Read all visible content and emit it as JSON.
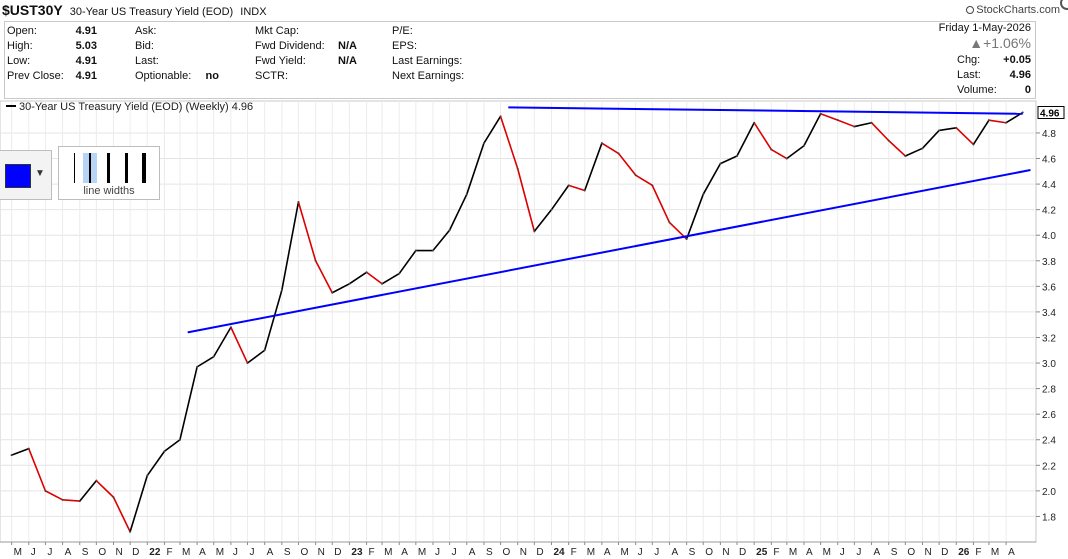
{
  "header": {
    "symbol": "$UST30Y",
    "name": "30-Year US Treasury Yield (EOD)",
    "exchange": "INDX",
    "brand": "StockCharts.com",
    "date": "Friday  1-May-2026",
    "change_pct": "▲+1.06%"
  },
  "quote": {
    "col1": [
      {
        "label": "Open:",
        "value": "4.91"
      },
      {
        "label": "High:",
        "value": "5.03"
      },
      {
        "label": "Low:",
        "value": "4.91"
      },
      {
        "label": "Prev Close:",
        "value": "4.91"
      }
    ],
    "col2": [
      {
        "label": "Ask:",
        "value": ""
      },
      {
        "label": "Bid:",
        "value": ""
      },
      {
        "label": "Last:",
        "value": ""
      },
      {
        "label": "Optionable:",
        "value": "no"
      }
    ],
    "col3": [
      {
        "label": "Mkt Cap:",
        "value": ""
      },
      {
        "label": "Fwd Dividend:",
        "value": "N/A"
      },
      {
        "label": "Fwd Yield:",
        "value": "N/A"
      },
      {
        "label": "SCTR:",
        "value": ""
      }
    ],
    "col4": [
      {
        "label": "P/E:",
        "value": ""
      },
      {
        "label": "EPS:",
        "value": ""
      },
      {
        "label": "Last Earnings:",
        "value": ""
      },
      {
        "label": "Next Earnings:",
        "value": ""
      }
    ],
    "right": [
      {
        "label": "Chg:",
        "value": "+0.05"
      },
      {
        "label": "Last:",
        "value": "4.96"
      },
      {
        "label": "Volume:",
        "value": "0"
      }
    ]
  },
  "legend": {
    "text": "30-Year US Treasury Yield (EOD) (Weekly) 4.96"
  },
  "toolbar": {
    "line_widths_label": "line widths",
    "color": "#0000ff"
  },
  "chart_data": {
    "type": "line",
    "frequency": "weekly",
    "series": [
      {
        "name": "30-Year US Treasury Yield (EOD) (Weekly) 4.96",
        "up_color": "#000000",
        "down_color": "#dd0000",
        "x": [
          "2021-05-01",
          "2021-06-01",
          "2021-07-01",
          "2021-08-01",
          "2021-09-01",
          "2021-10-01",
          "2021-11-01",
          "2021-12-01",
          "2022-01-01",
          "2022-02-01",
          "2022-03-01",
          "2022-04-01",
          "2022-05-01",
          "2022-06-01",
          "2022-07-01",
          "2022-08-01",
          "2022-09-01",
          "2022-10-01",
          "2022-11-01",
          "2022-12-01",
          "2023-01-01",
          "2023-02-01",
          "2023-03-01",
          "2023-04-01",
          "2023-05-01",
          "2023-06-01",
          "2023-07-01",
          "2023-08-01",
          "2023-09-01",
          "2023-10-01",
          "2023-11-01",
          "2023-12-01",
          "2024-01-01",
          "2024-02-01",
          "2024-03-01",
          "2024-04-01",
          "2024-05-01",
          "2024-06-01",
          "2024-07-01",
          "2024-08-01",
          "2024-09-01",
          "2024-10-01",
          "2024-11-01",
          "2024-12-01",
          "2025-01-01",
          "2025-02-01",
          "2025-03-01",
          "2025-04-01",
          "2025-05-01",
          "2025-06-01",
          "2025-07-01",
          "2025-08-01",
          "2025-09-01",
          "2025-10-01",
          "2025-11-01",
          "2025-12-01",
          "2026-01-01",
          "2026-02-01",
          "2026-03-01",
          "2026-04-01",
          "2026-05-01"
        ],
        "values": [
          2.28,
          2.33,
          2.0,
          1.93,
          1.92,
          2.08,
          1.95,
          1.68,
          2.12,
          2.31,
          2.4,
          2.97,
          3.05,
          3.28,
          3.0,
          3.1,
          3.57,
          4.26,
          3.8,
          3.55,
          3.62,
          3.71,
          3.62,
          3.7,
          3.88,
          3.88,
          4.04,
          4.32,
          4.72,
          4.93,
          4.52,
          4.03,
          4.2,
          4.39,
          4.35,
          4.72,
          4.64,
          4.47,
          4.39,
          4.1,
          3.97,
          4.32,
          4.56,
          4.62,
          4.88,
          4.67,
          4.6,
          4.7,
          4.95,
          4.9,
          4.85,
          4.88,
          4.74,
          4.62,
          4.68,
          4.82,
          4.84,
          4.71,
          4.9,
          4.88,
          4.96
        ]
      }
    ],
    "trendlines": [
      {
        "color": "#0000ff",
        "from": [
          "2022-03-15",
          3.24
        ],
        "to": [
          "2026-05-15",
          4.51
        ]
      },
      {
        "color": "#0000ff",
        "from": [
          "2023-10-15",
          5.0
        ],
        "to": [
          "2026-05-01",
          4.95
        ]
      }
    ],
    "x_labels": [
      {
        "t": "2021-05-01",
        "label": "M"
      },
      {
        "t": "2021-06-01",
        "label": "J"
      },
      {
        "t": "2021-07-01",
        "label": "J"
      },
      {
        "t": "2021-08-01",
        "label": "A"
      },
      {
        "t": "2021-09-01",
        "label": "S"
      },
      {
        "t": "2021-10-01",
        "label": "O"
      },
      {
        "t": "2021-11-01",
        "label": "N"
      },
      {
        "t": "2021-12-01",
        "label": "D"
      },
      {
        "t": "2022-01-01",
        "label": "22"
      },
      {
        "t": "2022-02-01",
        "label": "F"
      },
      {
        "t": "2022-03-01",
        "label": "M"
      },
      {
        "t": "2022-04-01",
        "label": "A"
      },
      {
        "t": "2022-05-01",
        "label": "M"
      },
      {
        "t": "2022-06-01",
        "label": "J"
      },
      {
        "t": "2022-07-01",
        "label": "J"
      },
      {
        "t": "2022-08-01",
        "label": "A"
      },
      {
        "t": "2022-09-01",
        "label": "S"
      },
      {
        "t": "2022-10-01",
        "label": "O"
      },
      {
        "t": "2022-11-01",
        "label": "N"
      },
      {
        "t": "2022-12-01",
        "label": "D"
      },
      {
        "t": "2023-01-01",
        "label": "23"
      },
      {
        "t": "2023-02-01",
        "label": "F"
      },
      {
        "t": "2023-03-01",
        "label": "M"
      },
      {
        "t": "2023-04-01",
        "label": "A"
      },
      {
        "t": "2023-05-01",
        "label": "M"
      },
      {
        "t": "2023-06-01",
        "label": "J"
      },
      {
        "t": "2023-07-01",
        "label": "J"
      },
      {
        "t": "2023-08-01",
        "label": "A"
      },
      {
        "t": "2023-09-01",
        "label": "S"
      },
      {
        "t": "2023-10-01",
        "label": "O"
      },
      {
        "t": "2023-11-01",
        "label": "N"
      },
      {
        "t": "2023-12-01",
        "label": "D"
      },
      {
        "t": "2024-01-01",
        "label": "24"
      },
      {
        "t": "2024-02-01",
        "label": "F"
      },
      {
        "t": "2024-03-01",
        "label": "M"
      },
      {
        "t": "2024-04-01",
        "label": "A"
      },
      {
        "t": "2024-05-01",
        "label": "M"
      },
      {
        "t": "2024-06-01",
        "label": "J"
      },
      {
        "t": "2024-07-01",
        "label": "J"
      },
      {
        "t": "2024-08-01",
        "label": "A"
      },
      {
        "t": "2024-09-01",
        "label": "S"
      },
      {
        "t": "2024-10-01",
        "label": "O"
      },
      {
        "t": "2024-11-01",
        "label": "N"
      },
      {
        "t": "2024-12-01",
        "label": "D"
      },
      {
        "t": "2025-01-01",
        "label": "25"
      },
      {
        "t": "2025-02-01",
        "label": "F"
      },
      {
        "t": "2025-03-01",
        "label": "M"
      },
      {
        "t": "2025-04-01",
        "label": "A"
      },
      {
        "t": "2025-05-01",
        "label": "M"
      },
      {
        "t": "2025-06-01",
        "label": "J"
      },
      {
        "t": "2025-07-01",
        "label": "J"
      },
      {
        "t": "2025-08-01",
        "label": "A"
      },
      {
        "t": "2025-09-01",
        "label": "S"
      },
      {
        "t": "2025-10-01",
        "label": "O"
      },
      {
        "t": "2025-11-01",
        "label": "N"
      },
      {
        "t": "2025-12-01",
        "label": "D"
      },
      {
        "t": "2026-01-01",
        "label": "26"
      },
      {
        "t": "2026-02-01",
        "label": "F"
      },
      {
        "t": "2026-03-01",
        "label": "M"
      },
      {
        "t": "2026-04-01",
        "label": "A"
      }
    ],
    "y_ticks": [
      1.8,
      2.0,
      2.2,
      2.4,
      2.6,
      2.8,
      3.0,
      3.2,
      3.4,
      3.6,
      3.8,
      4.0,
      4.2,
      4.4,
      4.6,
      4.8
    ],
    "x_range": [
      "2021-04-10",
      "2026-05-25"
    ],
    "ylim": [
      1.6,
      5.05
    ],
    "last_value_label": "4.96",
    "grid": true,
    "axis_position": "right",
    "xlabel": "",
    "ylabel": ""
  }
}
